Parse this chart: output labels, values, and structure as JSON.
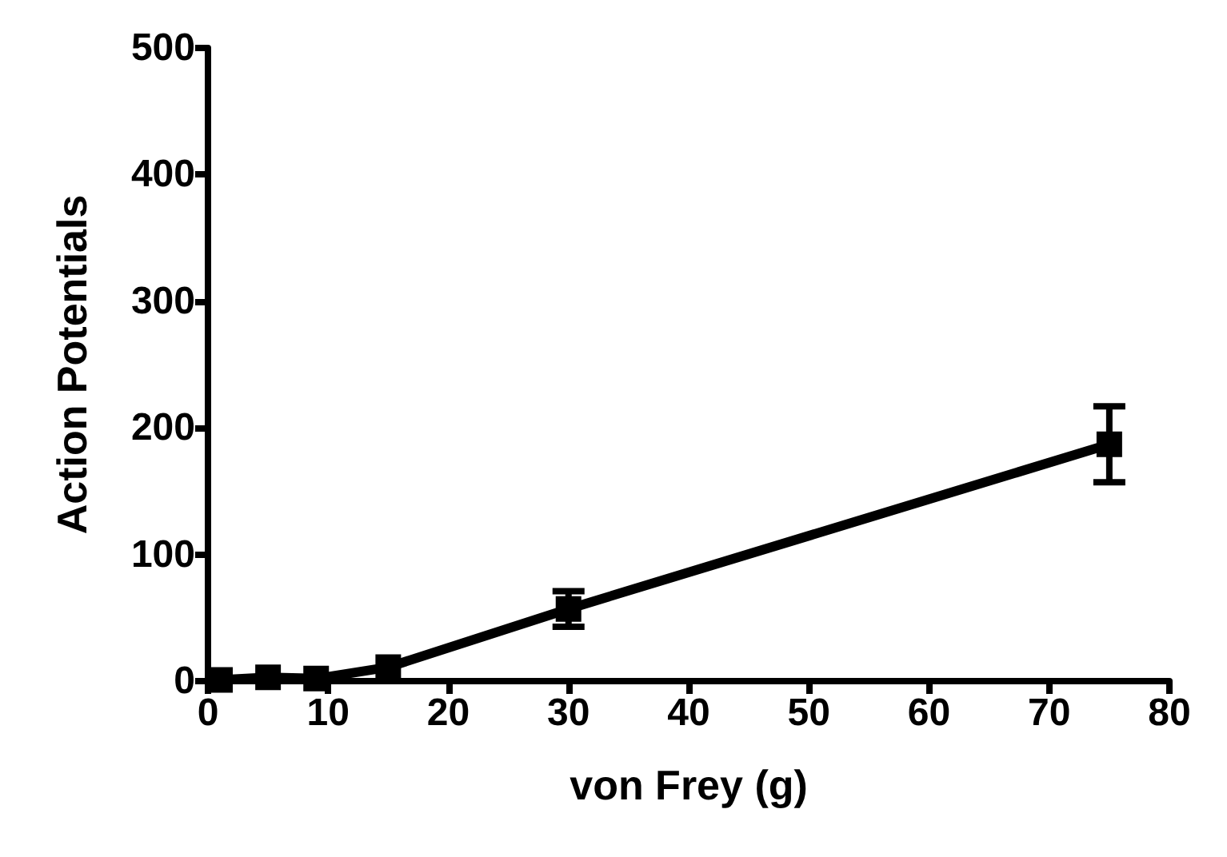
{
  "chart_data": {
    "type": "line",
    "xlabel": "von Frey (g)",
    "ylabel": "Action Potentials",
    "x": [
      1,
      5,
      9,
      15,
      30,
      75
    ],
    "series": [
      {
        "color": "#000000",
        "values": [
          1,
          3,
          2,
          11,
          57,
          187
        ],
        "errors": [
          null,
          null,
          null,
          null,
          14,
          30
        ]
      }
    ],
    "xlim": [
      0,
      80
    ],
    "xticks": [
      0,
      10,
      20,
      30,
      40,
      50,
      60,
      70,
      80
    ],
    "ylim": [
      0,
      500
    ],
    "yticks": [
      0,
      100,
      200,
      300,
      400,
      500
    ],
    "marker": "square",
    "line_style": "solid",
    "grid": false
  }
}
